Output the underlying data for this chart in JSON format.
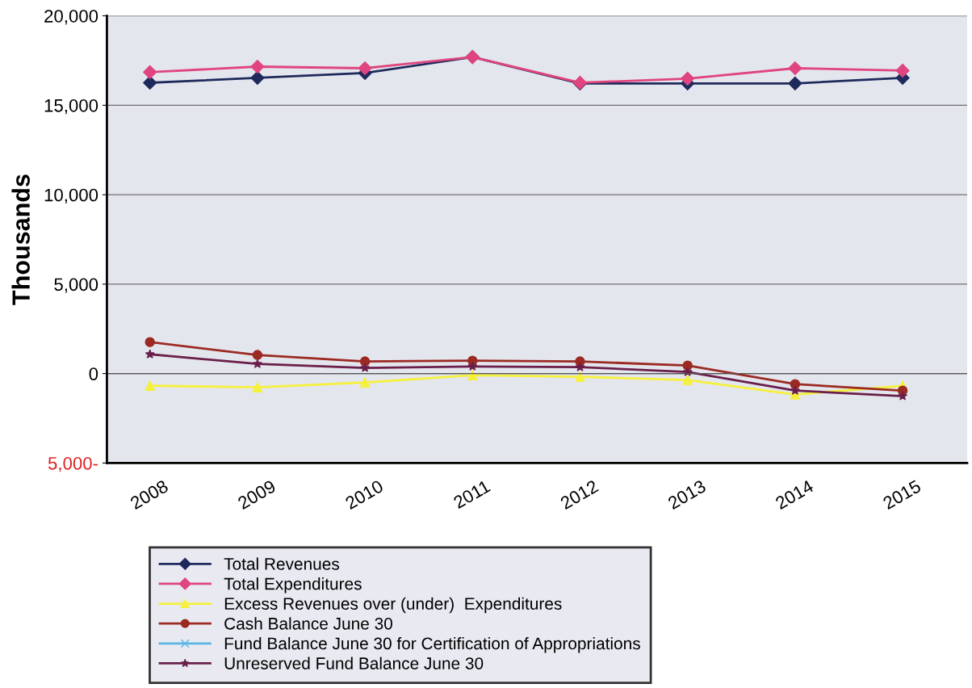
{
  "chart_data": {
    "type": "line",
    "ylabel": "Thousands",
    "categories": [
      "2008",
      "2009",
      "2010",
      "2011",
      "2012",
      "2013",
      "2014",
      "2015"
    ],
    "series": [
      {
        "name": "Total Revenues",
        "color": "#1f2a5c",
        "marker": "diamond",
        "values": [
          16260,
          16530,
          16800,
          17700,
          16220,
          16220,
          16220,
          16530
        ]
      },
      {
        "name": "Total Expenditures",
        "color": "#e0457f",
        "marker": "diamond",
        "values": [
          16850,
          17160,
          17070,
          17700,
          16260,
          16490,
          17070,
          16940
        ]
      },
      {
        "name": "Excess Revenues over (under)  Expenditures",
        "color": "#f5f03c",
        "marker": "triangle",
        "values": [
          -680,
          -770,
          -500,
          -90,
          -180,
          -360,
          -1170,
          -680
        ]
      },
      {
        "name": "Cash Balance June 30",
        "color": "#9b2a22",
        "marker": "circle",
        "values": [
          1760,
          1040,
          680,
          720,
          680,
          450,
          -590,
          -950
        ]
      },
      {
        "name": "Fund Balance June 30 for Certification of Appropriations",
        "color": "#5ab4e6",
        "marker": "cross",
        "values": [
          null,
          null,
          null,
          null,
          null,
          null,
          null,
          null
        ]
      },
      {
        "name": "Unreserved Fund Balance June 30",
        "color": "#6a1f4a",
        "marker": "star",
        "values": [
          1080,
          540,
          320,
          400,
          360,
          90,
          -950,
          -1260
        ]
      }
    ],
    "ylim": [
      -5000,
      20000
    ],
    "yticks": [
      {
        "value": 20000,
        "label": "20,000"
      },
      {
        "value": 15000,
        "label": "15,000"
      },
      {
        "value": 10000,
        "label": "10,000"
      },
      {
        "value": 5000,
        "label": "5,000"
      },
      0,
      {
        "value": -5000,
        "label": "5,000-"
      }
    ],
    "grid": "y",
    "legend": "bottom"
  }
}
